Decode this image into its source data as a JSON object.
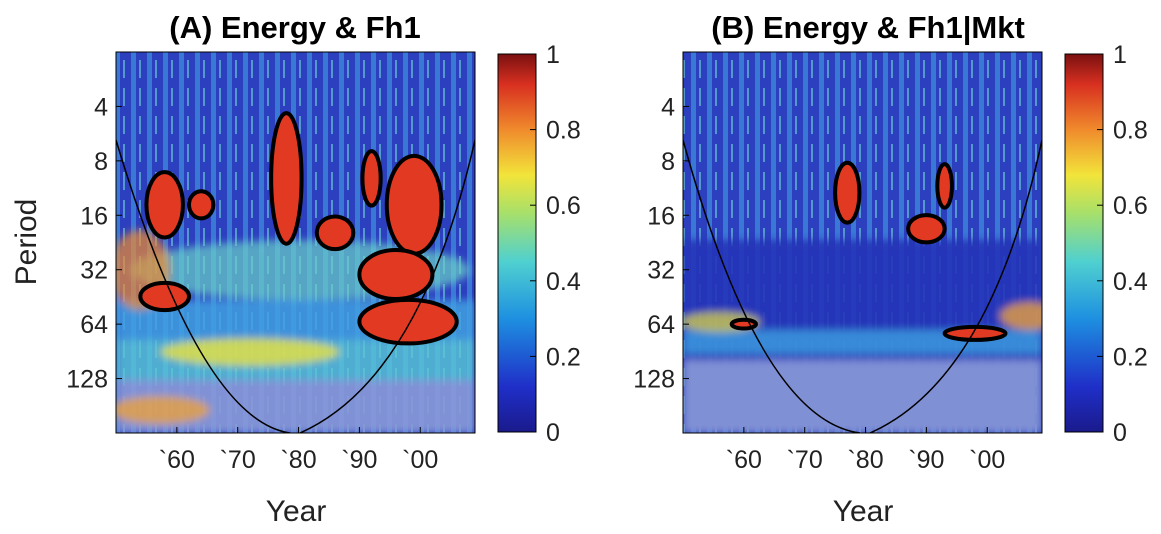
{
  "chart_data": [
    {
      "type": "heatmap",
      "title": "(A) Energy & Fh1",
      "xlabel": "Year",
      "ylabel": "Period",
      "x_ticks": [
        "`60",
        "`70",
        "`80",
        "`90",
        "`00"
      ],
      "x_tick_years": [
        1960,
        1970,
        1980,
        1990,
        2000
      ],
      "xlim": [
        1950,
        2009
      ],
      "y_ticks": [
        4,
        8,
        16,
        32,
        64,
        128
      ],
      "ylim": [
        2,
        256
      ],
      "y_scale": "log2",
      "y_reversed": true,
      "colorbar": {
        "range": [
          0,
          1
        ],
        "ticks": [
          0,
          0.2,
          0.4,
          0.6,
          0.8,
          1
        ],
        "colormap": "jet"
      },
      "significant_regions": [
        {
          "x": 1958,
          "period": 14,
          "rx": 3,
          "ry": 0.6
        },
        {
          "x": 1964,
          "period": 14,
          "rx": 2,
          "ry": 0.25
        },
        {
          "x": 1978,
          "period": 10,
          "rx": 2.5,
          "ry": 1.2
        },
        {
          "x": 1986,
          "period": 20,
          "rx": 3,
          "ry": 0.3
        },
        {
          "x": 1992,
          "period": 10,
          "rx": 1.5,
          "ry": 0.5
        },
        {
          "x": 1999,
          "period": 14,
          "rx": 4.5,
          "ry": 0.9
        },
        {
          "x": 1996,
          "period": 34,
          "rx": 6,
          "ry": 0.45
        },
        {
          "x": 1998,
          "period": 62,
          "rx": 8,
          "ry": 0.4
        },
        {
          "x": 1958,
          "period": 45,
          "rx": 4,
          "ry": 0.25
        }
      ]
    },
    {
      "type": "heatmap",
      "title": "(B) Energy & Fh1|Mkt",
      "xlabel": "Year",
      "ylabel": "",
      "x_ticks": [
        "`60",
        "`70",
        "`80",
        "`90",
        "`00"
      ],
      "x_tick_years": [
        1960,
        1970,
        1980,
        1990,
        2000
      ],
      "xlim": [
        1950,
        2009
      ],
      "y_ticks": [
        4,
        8,
        16,
        32,
        64,
        128
      ],
      "ylim": [
        2,
        256
      ],
      "y_scale": "log2",
      "y_reversed": true,
      "colorbar": {
        "range": [
          0,
          1
        ],
        "ticks": [
          0,
          0.2,
          0.4,
          0.6,
          0.8,
          1
        ],
        "colormap": "jet"
      },
      "significant_regions": [
        {
          "x": 1977,
          "period": 12,
          "rx": 2,
          "ry": 0.55
        },
        {
          "x": 1990,
          "period": 19,
          "rx": 3,
          "ry": 0.25
        },
        {
          "x": 1993,
          "period": 11,
          "rx": 1.2,
          "ry": 0.4
        },
        {
          "x": 1998,
          "period": 72,
          "rx": 5,
          "ry": 0.12
        },
        {
          "x": 1960,
          "period": 64,
          "rx": 2,
          "ry": 0.08
        }
      ]
    }
  ]
}
